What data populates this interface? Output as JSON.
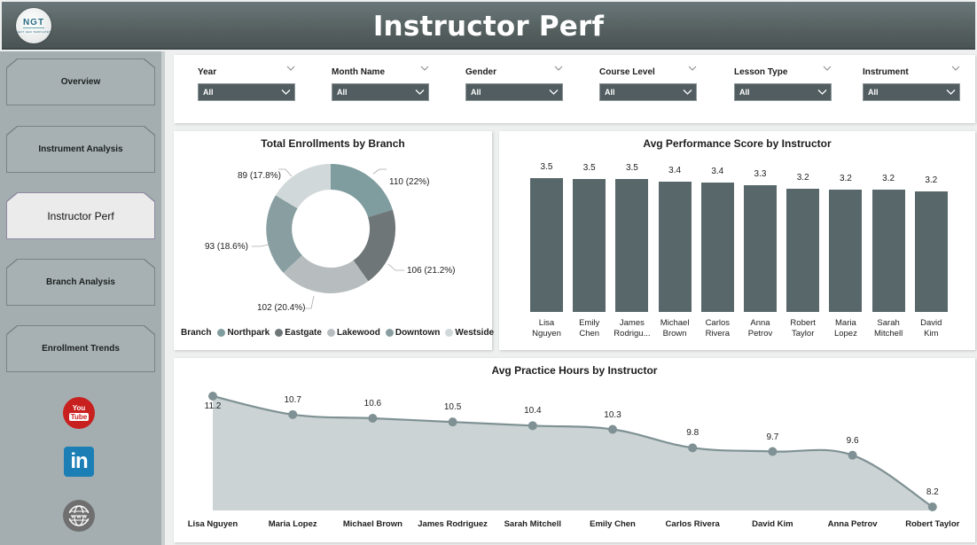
{
  "header": {
    "logo_text": "NGT",
    "logo_subtext": "NEXT GEN TEMPLATES",
    "title": "Instructor Perf"
  },
  "sidebar": {
    "items": [
      {
        "label": "Overview",
        "active": false
      },
      {
        "label": "Instrument Analysis",
        "active": false
      },
      {
        "label": "Instructor Perf",
        "active": true
      },
      {
        "label": "Branch Analysis",
        "active": false
      },
      {
        "label": "Enrollment Trends",
        "active": false
      }
    ],
    "social": [
      {
        "icon": "youtube-icon",
        "you": "You",
        "tube": "Tube"
      },
      {
        "icon": "linkedin-icon",
        "text": "in"
      },
      {
        "icon": "globe-www-icon",
        "text": "www"
      }
    ]
  },
  "filters": [
    {
      "label": "Year",
      "value": "All"
    },
    {
      "label": "Month Name",
      "value": "All"
    },
    {
      "label": "Gender",
      "value": "All"
    },
    {
      "label": "Course Level",
      "value": "All"
    },
    {
      "label": "Lesson Type",
      "value": "All"
    },
    {
      "label": "Instrument",
      "value": "All"
    }
  ],
  "colors": {
    "header_bg": "#55605f",
    "sidebar_bg": "#a4aeb0",
    "slicer_bg": "#515d60",
    "bar": "#58676a",
    "line": "#7f9194",
    "area": "#cbd3d4",
    "northpark": "#7f9c9f",
    "eastgate": "#6e7677",
    "lakewood": "#b7bdbe",
    "downtown": "#889ea0",
    "westside": "#d1d8da"
  },
  "donut": {
    "title": "Total Enrollments by Branch",
    "legend_title": "Branch",
    "labels": [
      "110 (22%)",
      "106 (21.2%)",
      "102 (20.4%)",
      "93 (18.6%)",
      "89 (17.8%)"
    ]
  },
  "bars": {
    "title": "Avg Performance Score by Instructor",
    "names": [
      [
        "Lisa",
        "Nguyen"
      ],
      [
        "Emily",
        "Chen"
      ],
      [
        "James",
        "Rodrigu..."
      ],
      [
        "Michael",
        "Brown"
      ],
      [
        "Carlos",
        "Rivera"
      ],
      [
        "Anna",
        "Petrov"
      ],
      [
        "Robert",
        "Taylor"
      ],
      [
        "Maria",
        "Lopez"
      ],
      [
        "Sarah",
        "Mitchell"
      ],
      [
        "David",
        "Kim"
      ]
    ],
    "value_labels": [
      "3.5",
      "3.5",
      "3.5",
      "3.4",
      "3.4",
      "3.3",
      "3.2",
      "3.2",
      "3.2",
      "3.2"
    ]
  },
  "line": {
    "title": "Avg Practice Hours by Instructor",
    "names": [
      "Lisa Nguyen",
      "Maria Lopez",
      "Michael Brown",
      "James Rodriguez",
      "Sarah Mitchell",
      "Emily Chen",
      "Carlos Rivera",
      "David Kim",
      "Anna Petrov",
      "Robert Taylor"
    ],
    "value_labels": [
      "11.2",
      "10.7",
      "10.6",
      "10.5",
      "10.4",
      "10.3",
      "9.8",
      "9.7",
      "9.6",
      "8.2"
    ]
  },
  "chart_data": [
    {
      "type": "pie",
      "title": "Total Enrollments by Branch",
      "legend_title": "Branch",
      "categories": [
        "Northpark",
        "Eastgate",
        "Lakewood",
        "Downtown",
        "Westside"
      ],
      "values": [
        110,
        106,
        102,
        93,
        89
      ],
      "percentages": [
        22,
        21.2,
        20.4,
        18.6,
        17.8
      ],
      "donut": true,
      "legend_position": "bottom"
    },
    {
      "type": "bar",
      "title": "Avg Performance Score by Instructor",
      "categories": [
        "Lisa Nguyen",
        "Emily Chen",
        "James Rodriguez",
        "Michael Brown",
        "Carlos Rivera",
        "Anna Petrov",
        "Robert Taylor",
        "Maria Lopez",
        "Sarah Mitchell",
        "David Kim"
      ],
      "values": [
        3.5,
        3.5,
        3.5,
        3.4,
        3.4,
        3.3,
        3.2,
        3.2,
        3.2,
        3.2
      ],
      "xlabel": "",
      "ylabel": "",
      "grid": false
    },
    {
      "type": "area",
      "title": "Avg Practice Hours by Instructor",
      "categories": [
        "Lisa Nguyen",
        "Maria Lopez",
        "Michael Brown",
        "James Rodriguez",
        "Sarah Mitchell",
        "Emily Chen",
        "Carlos Rivera",
        "David Kim",
        "Anna Petrov",
        "Robert Taylor"
      ],
      "values": [
        11.2,
        10.7,
        10.6,
        10.5,
        10.4,
        10.3,
        9.8,
        9.7,
        9.6,
        8.2
      ],
      "xlabel": "",
      "ylabel": "",
      "grid": false
    }
  ]
}
